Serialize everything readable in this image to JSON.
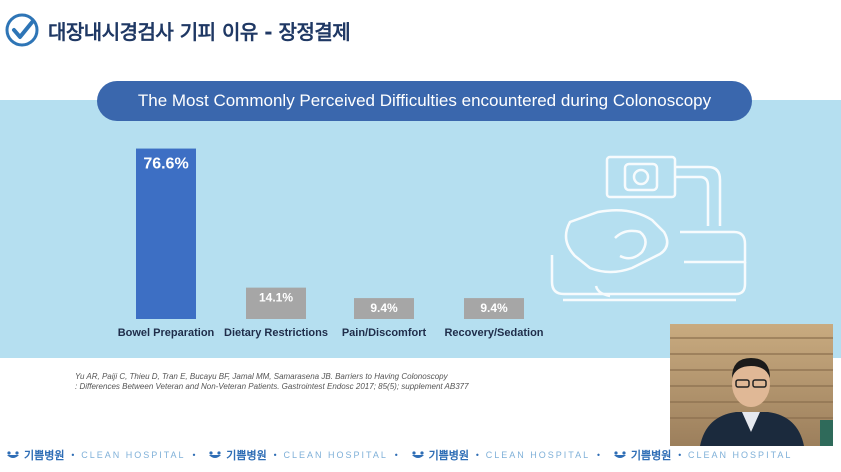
{
  "header": {
    "title": "대장내시경검사 기피 이유 - 장정결제",
    "check_icon": "check-circle-icon",
    "accent": "#2e75b6"
  },
  "chart_data": {
    "type": "bar",
    "title": "The Most Commonly Perceived Difficulties encountered during Colonoscopy",
    "categories": [
      "Bowel Preparation",
      "Dietary Restrictions",
      "Pain/Discomfort",
      "Recovery/Sedation"
    ],
    "values": [
      76.6,
      14.1,
      9.4,
      9.4
    ],
    "value_labels": [
      "76.6%",
      "14.1%",
      "9.4%",
      "9.4%"
    ],
    "ylim": [
      0,
      80
    ],
    "colors": [
      "#3d6fc4",
      "#a6a6a6",
      "#a6a6a6",
      "#a6a6a6"
    ],
    "xlabel": "",
    "ylabel": "",
    "grid": false,
    "legend": "none"
  },
  "citation": {
    "line1": "Yu AR, Paiji C, Thieu D, Tran E, Bucayu BF, Jamal MM, Samarasena JB. Barriers to Having Colonoscopy",
    "line2": ": Differences Between Veteran and Non-Veteran Patients. Gastrointest Endosc 2017; 85(5); supplement AB377"
  },
  "footer": {
    "brand_ko": "기쁨병원",
    "brand_en": "CLEAN HOSPITAL",
    "separator": "•",
    "icon": "smile-logo-icon"
  },
  "decor": {
    "illustration": "colonoscopy-patient-illustration-icon",
    "webcam": "presenter-webcam-video"
  }
}
